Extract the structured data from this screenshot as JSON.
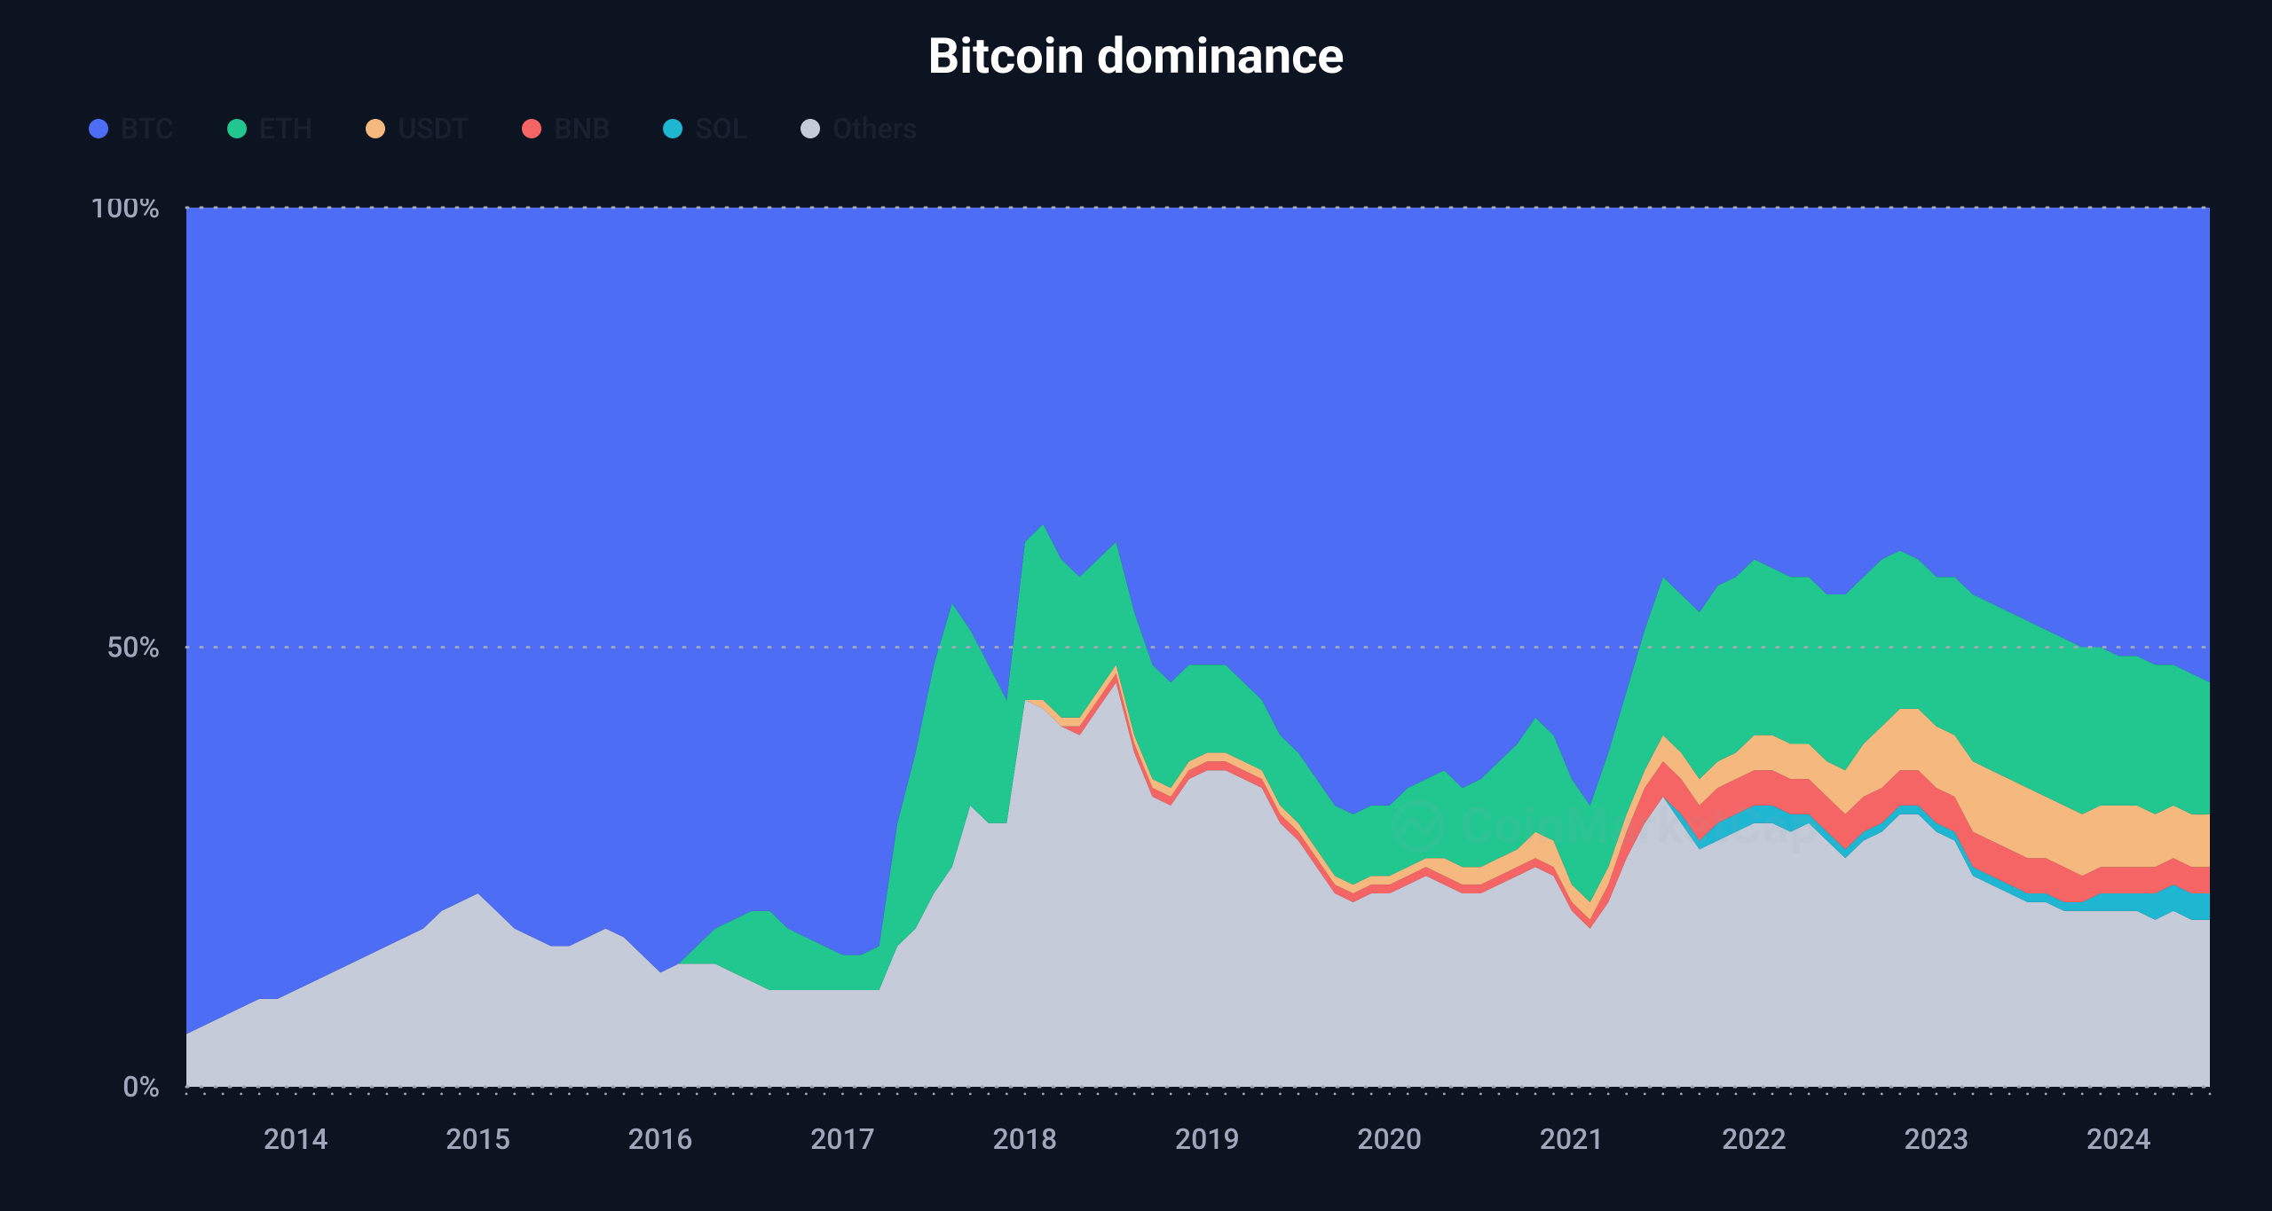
{
  "chart": {
    "type": "stacked-area",
    "title": "Bitcoin dominance",
    "background_color": "#0d1421",
    "title_color": "#ffffff",
    "title_fontsize": 56,
    "axis_label_color": "#a1a7bb",
    "axis_label_fontsize": 32,
    "dotted_line_color": "#a1a7bb",
    "watermark_text": "CoinMarketCap",
    "watermark_color": "rgba(161,167,187,0.10)",
    "y_axis": {
      "min": 0,
      "max": 100,
      "ticks": [
        {
          "value": 0,
          "label": "0%"
        },
        {
          "value": 50,
          "label": "50%"
        },
        {
          "value": 100,
          "label": "100%"
        }
      ]
    },
    "x_axis": {
      "labels": [
        "2014",
        "2015",
        "2016",
        "2017",
        "2018",
        "2019",
        "2020",
        "2021",
        "2022",
        "2023",
        "2024"
      ]
    },
    "legend": [
      {
        "key": "BTC",
        "label": "BTC",
        "color": "#4e6df5"
      },
      {
        "key": "ETH",
        "label": "ETH",
        "color": "#21c78f"
      },
      {
        "key": "USDT",
        "label": "USDT",
        "color": "#f5b97f"
      },
      {
        "key": "BNB",
        "label": "BNB",
        "color": "#f56565"
      },
      {
        "key": "SOL",
        "label": "SOL",
        "color": "#1fb6d1"
      },
      {
        "key": "Others",
        "label": "Others",
        "color": "#c5cbd9"
      }
    ],
    "series_order_bottom_to_top": [
      "Others",
      "SOL",
      "BNB",
      "USDT",
      "ETH",
      "BTC"
    ],
    "series_colors": {
      "BTC": "#4e6df5",
      "ETH": "#21c78f",
      "USDT": "#f5b97f",
      "BNB": "#f56565",
      "SOL": "#1fb6d1",
      "Others": "#c5cbd9"
    },
    "timepoints": [
      "2013.4",
      "2013.5",
      "2013.6",
      "2013.7",
      "2013.8",
      "2013.9",
      "2014.0",
      "2014.1",
      "2014.2",
      "2014.3",
      "2014.4",
      "2014.5",
      "2014.6",
      "2014.7",
      "2014.8",
      "2014.9",
      "2015.0",
      "2015.1",
      "2015.2",
      "2015.3",
      "2015.4",
      "2015.5",
      "2015.6",
      "2015.7",
      "2015.8",
      "2015.9",
      "2016.0",
      "2016.1",
      "2016.2",
      "2016.3",
      "2016.4",
      "2016.5",
      "2016.6",
      "2016.7",
      "2016.8",
      "2016.9",
      "2017.0",
      "2017.1",
      "2017.2",
      "2017.3",
      "2017.4",
      "2017.5",
      "2017.6",
      "2017.7",
      "2017.8",
      "2017.9",
      "2018.0",
      "2018.1",
      "2018.2",
      "2018.3",
      "2018.4",
      "2018.5",
      "2018.6",
      "2018.7",
      "2018.8",
      "2018.9",
      "2019.0",
      "2019.1",
      "2019.2",
      "2019.3",
      "2019.4",
      "2019.5",
      "2019.6",
      "2019.7",
      "2019.8",
      "2019.9",
      "2020.0",
      "2020.1",
      "2020.2",
      "2020.3",
      "2020.4",
      "2020.5",
      "2020.6",
      "2020.7",
      "2020.8",
      "2020.9",
      "2021.0",
      "2021.1",
      "2021.2",
      "2021.3",
      "2021.4",
      "2021.5",
      "2021.6",
      "2021.7",
      "2021.8",
      "2021.9",
      "2022.0",
      "2022.1",
      "2022.2",
      "2022.3",
      "2022.4",
      "2022.5",
      "2022.6",
      "2022.7",
      "2022.8",
      "2022.9",
      "2023.0",
      "2023.1",
      "2023.2",
      "2023.3",
      "2023.4",
      "2023.5",
      "2023.6",
      "2023.7",
      "2023.8",
      "2023.9",
      "2024.0",
      "2024.1",
      "2024.2",
      "2024.3",
      "2024.4",
      "2024.5"
    ],
    "data": {
      "BTC": [
        94,
        93,
        92,
        91,
        90,
        90,
        89,
        88,
        87,
        86,
        85,
        84,
        83,
        82,
        80,
        79,
        78,
        80,
        82,
        83,
        84,
        84,
        83,
        82,
        83,
        85,
        87,
        86,
        84,
        82,
        81,
        80,
        80,
        82,
        83,
        84,
        85,
        85,
        84,
        70,
        62,
        52,
        45,
        48,
        52,
        56,
        38,
        36,
        40,
        42,
        40,
        38,
        46,
        52,
        54,
        52,
        52,
        52,
        54,
        56,
        60,
        62,
        65,
        68,
        69,
        68,
        68,
        66,
        65,
        64,
        66,
        65,
        63,
        61,
        58,
        60,
        65,
        68,
        62,
        55,
        48,
        42,
        44,
        46,
        43,
        42,
        40,
        41,
        42,
        42,
        44,
        44,
        42,
        40,
        39,
        40,
        42,
        42,
        44,
        45,
        46,
        47,
        48,
        49,
        50,
        50,
        51,
        51,
        52,
        52,
        53,
        54
      ],
      "ETH": [
        0,
        0,
        0,
        0,
        0,
        0,
        0,
        0,
        0,
        0,
        0,
        0,
        0,
        0,
        0,
        0,
        0,
        0,
        0,
        0,
        0,
        0,
        0,
        0,
        0,
        0,
        0,
        0,
        2,
        4,
        6,
        8,
        9,
        7,
        6,
        5,
        4,
        4,
        5,
        14,
        20,
        26,
        30,
        20,
        18,
        14,
        18,
        20,
        18,
        16,
        15,
        14,
        14,
        13,
        12,
        11,
        10,
        10,
        9,
        8,
        8,
        8,
        8,
        8,
        8,
        8,
        8,
        9,
        9,
        10,
        9,
        10,
        11,
        12,
        13,
        12,
        12,
        11,
        13,
        14,
        16,
        18,
        18,
        19,
        20,
        20,
        20,
        19,
        19,
        19,
        19,
        20,
        19,
        19,
        18,
        17,
        17,
        18,
        19,
        19,
        19,
        19,
        19,
        19,
        19,
        18,
        17,
        17,
        17,
        16,
        16,
        15
      ],
      "USDT": [
        0,
        0,
        0,
        0,
        0,
        0,
        0,
        0,
        0,
        0,
        0,
        0,
        0,
        0,
        0,
        0,
        0,
        0,
        0,
        0,
        0,
        0,
        0,
        0,
        0,
        0,
        0,
        0,
        0,
        0,
        0,
        0,
        0,
        0,
        0,
        0,
        0,
        0,
        0,
        0,
        0,
        0,
        0,
        0,
        0,
        0,
        0,
        1,
        1,
        1,
        1,
        1,
        1,
        1,
        1,
        1,
        1,
        1,
        1,
        1,
        1,
        1,
        1,
        1,
        1,
        1,
        1,
        1,
        1,
        2,
        2,
        2,
        2,
        2,
        3,
        3,
        2,
        2,
        2,
        2,
        2,
        3,
        3,
        3,
        3,
        3,
        4,
        4,
        4,
        4,
        4,
        5,
        6,
        7,
        7,
        7,
        7,
        7,
        8,
        8,
        8,
        8,
        7,
        7,
        7,
        7,
        7,
        7,
        6,
        6,
        6,
        6
      ],
      "BNB": [
        0,
        0,
        0,
        0,
        0,
        0,
        0,
        0,
        0,
        0,
        0,
        0,
        0,
        0,
        0,
        0,
        0,
        0,
        0,
        0,
        0,
        0,
        0,
        0,
        0,
        0,
        0,
        0,
        0,
        0,
        0,
        0,
        0,
        0,
        0,
        0,
        0,
        0,
        0,
        0,
        0,
        0,
        0,
        0,
        0,
        0,
        0,
        0,
        0,
        1,
        1,
        1,
        1,
        1,
        1,
        1,
        1,
        1,
        1,
        1,
        1,
        1,
        1,
        1,
        1,
        1,
        1,
        1,
        1,
        1,
        1,
        1,
        1,
        1,
        1,
        1,
        1,
        1,
        2,
        3,
        4,
        4,
        4,
        4,
        4,
        4,
        4,
        4,
        4,
        4,
        4,
        4,
        4,
        4,
        4,
        4,
        4,
        4,
        4,
        4,
        4,
        4,
        4,
        4,
        3,
        3,
        3,
        3,
        3,
        3,
        3,
        3
      ],
      "SOL": [
        0,
        0,
        0,
        0,
        0,
        0,
        0,
        0,
        0,
        0,
        0,
        0,
        0,
        0,
        0,
        0,
        0,
        0,
        0,
        0,
        0,
        0,
        0,
        0,
        0,
        0,
        0,
        0,
        0,
        0,
        0,
        0,
        0,
        0,
        0,
        0,
        0,
        0,
        0,
        0,
        0,
        0,
        0,
        0,
        0,
        0,
        0,
        0,
        0,
        0,
        0,
        0,
        0,
        0,
        0,
        0,
        0,
        0,
        0,
        0,
        0,
        0,
        0,
        0,
        0,
        0,
        0,
        0,
        0,
        0,
        0,
        0,
        0,
        0,
        0,
        0,
        0,
        0,
        0,
        0,
        0,
        0,
        1,
        1,
        2,
        2,
        2,
        2,
        2,
        1,
        1,
        1,
        1,
        1,
        1,
        1,
        1,
        1,
        1,
        1,
        1,
        1,
        1,
        1,
        1,
        2,
        2,
        2,
        3,
        3,
        3,
        3
      ],
      "Others": [
        6,
        7,
        8,
        9,
        10,
        10,
        11,
        12,
        13,
        14,
        15,
        16,
        17,
        18,
        20,
        21,
        22,
        20,
        18,
        17,
        16,
        16,
        17,
        18,
        17,
        15,
        13,
        14,
        14,
        14,
        13,
        12,
        11,
        11,
        11,
        11,
        11,
        11,
        11,
        16,
        18,
        22,
        25,
        32,
        30,
        30,
        44,
        43,
        41,
        40,
        43,
        46,
        38,
        33,
        32,
        35,
        36,
        36,
        35,
        34,
        30,
        28,
        25,
        22,
        21,
        22,
        22,
        23,
        24,
        23,
        22,
        22,
        23,
        24,
        25,
        24,
        20,
        18,
        21,
        26,
        30,
        33,
        30,
        27,
        28,
        29,
        30,
        30,
        29,
        30,
        28,
        26,
        28,
        29,
        31,
        31,
        29,
        28,
        24,
        23,
        22,
        21,
        21,
        20,
        20,
        20,
        20,
        20,
        19,
        20,
        19,
        19
      ]
    }
  }
}
